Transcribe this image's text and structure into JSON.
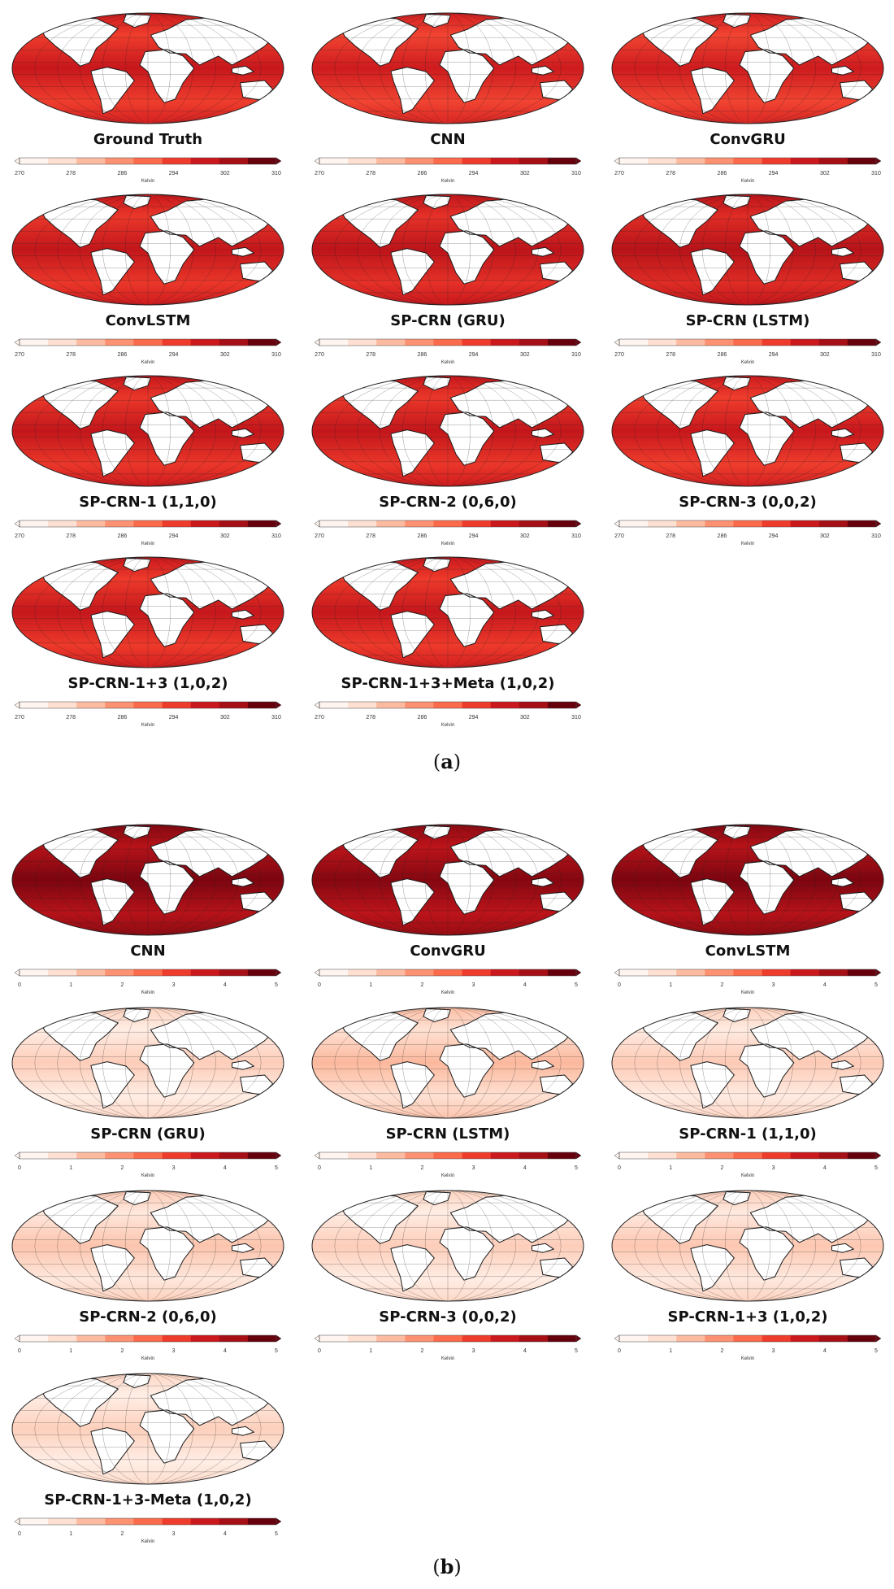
{
  "figure": {
    "section_a": {
      "label_open": "(",
      "label_letter": "a",
      "label_close": ")",
      "colorbar": {
        "unit": "Kelvin",
        "ticks": [
          "270",
          "278",
          "286",
          "294",
          "302",
          "310"
        ],
        "colors": [
          "#fff5f0",
          "#fee0d2",
          "#fcbba1",
          "#fc9272",
          "#fb6a4a",
          "#ef3b2c",
          "#cb181d",
          "#a50f15",
          "#67000d"
        ]
      },
      "panels": [
        {
          "title": "Ground Truth",
          "field_level": 0.62
        },
        {
          "title": "CNN",
          "field_level": 0.6
        },
        {
          "title": "ConvGRU",
          "field_level": 0.6
        },
        {
          "title": "ConvLSTM",
          "field_level": 0.64
        },
        {
          "title": "SP-CRN (GRU)",
          "field_level": 0.66
        },
        {
          "title": "SP-CRN (LSTM)",
          "field_level": 0.68
        },
        {
          "title": "SP-CRN-1 (1,1,0)",
          "field_level": 0.64
        },
        {
          "title": "SP-CRN-2 (0,6,0)",
          "field_level": 0.64
        },
        {
          "title": "SP-CRN-3 (0,0,2)",
          "field_level": 0.62
        },
        {
          "title": "SP-CRN-1+3 (1,0,2)",
          "field_level": 0.63
        },
        {
          "title": "SP-CRN-1+3+Meta (1,0,2)",
          "field_level": 0.63
        }
      ]
    },
    "section_b": {
      "label_open": "(",
      "label_letter": "b",
      "label_close": ")",
      "colorbar": {
        "unit": "Kelvin",
        "ticks": [
          "0",
          "1",
          "2",
          "3",
          "4",
          "5"
        ],
        "colors": [
          "#fff5f0",
          "#fee0d2",
          "#fcbba1",
          "#fc9272",
          "#fb6a4a",
          "#ef3b2c",
          "#cb181d",
          "#a50f15",
          "#67000d"
        ]
      },
      "panels": [
        {
          "title": "CNN",
          "field_level": 0.82
        },
        {
          "title": "ConvGRU",
          "field_level": 0.8
        },
        {
          "title": "ConvLSTM",
          "field_level": 0.82
        },
        {
          "title": "SP-CRN (GRU)",
          "field_level": 0.05
        },
        {
          "title": "SP-CRN (LSTM)",
          "field_level": 0.12
        },
        {
          "title": "SP-CRN-1 (1,1,0)",
          "field_level": 0.06
        },
        {
          "title": "SP-CRN-2 (0,6,0)",
          "field_level": 0.08
        },
        {
          "title": "SP-CRN-3 (0,0,2)",
          "field_level": 0.05
        },
        {
          "title": "SP-CRN-1+3 (1,0,2)",
          "field_level": 0.07
        },
        {
          "title": "SP-CRN-1+3-Meta (1,0,2)",
          "field_level": 0.04
        }
      ]
    }
  }
}
